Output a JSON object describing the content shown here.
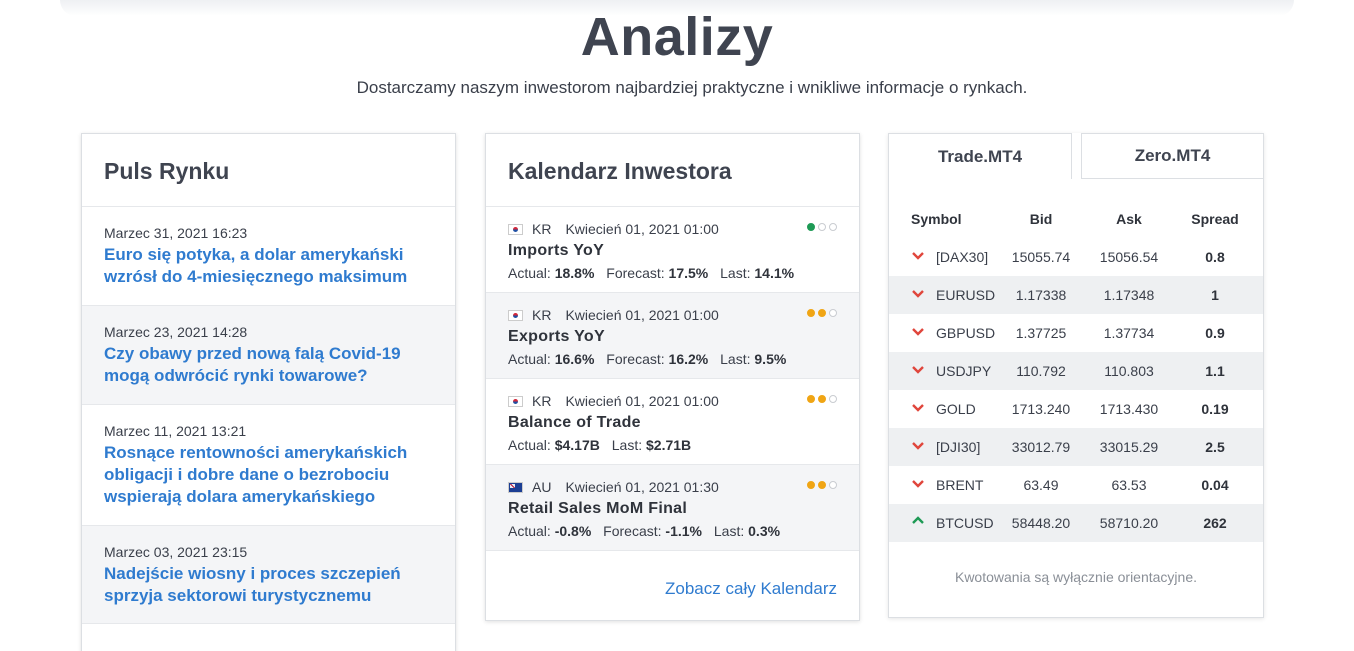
{
  "header": {
    "title": "Analizy",
    "subtitle": "Dostarczamy naszym inwestorom najbardziej praktyczne i wnikliwe informacje o rynkach."
  },
  "puls": {
    "title": "Puls Rynku",
    "items": [
      {
        "date": "Marzec 31, 2021 16:23",
        "headline": "Euro się potyka, a dolar amerykański wzrósł do 4-miesięcznego maksimum"
      },
      {
        "date": "Marzec 23, 2021 14:28",
        "headline": "Czy obawy przed nową falą Covid-19 mogą odwrócić rynki towarowe?"
      },
      {
        "date": "Marzec 11, 2021 13:21",
        "headline": "Rosnące rentowności amerykańskich obligacji i dobre dane o bezrobociu wspierają dolara amerykańskiego"
      },
      {
        "date": "Marzec 03, 2021 23:15",
        "headline": "Nadejście wiosny i proces szczepień sprzyja sektorowi turystycznemu"
      }
    ]
  },
  "kalendarz": {
    "title": "Kalendarz Inwestora",
    "footer_link": "Zobacz cały Kalendarz",
    "events": [
      {
        "country": "KR",
        "flag": "kr-flag-icon",
        "datetime": "Kwiecień 01, 2021 01:00",
        "name": "Imports YoY",
        "actual_label": "Actual:",
        "actual": "18.8%",
        "forecast_label": "Forecast:",
        "forecast": "17.5%",
        "last_label": "Last:",
        "last": "14.1%",
        "importance": 1,
        "importance_color": "#1e9a55"
      },
      {
        "country": "KR",
        "flag": "kr-flag-icon",
        "datetime": "Kwiecień 01, 2021 01:00",
        "name": "Exports YoY",
        "actual_label": "Actual:",
        "actual": "16.6%",
        "forecast_label": "Forecast:",
        "forecast": "16.2%",
        "last_label": "Last:",
        "last": "9.5%",
        "importance": 2,
        "importance_color": "#f0a514"
      },
      {
        "country": "KR",
        "flag": "kr-flag-icon",
        "datetime": "Kwiecień 01, 2021 01:00",
        "name": "Balance of Trade",
        "actual_label": "Actual:",
        "actual": "$4.17B",
        "last_label": "Last:",
        "last": "$2.71B",
        "importance": 2,
        "importance_color": "#f0a514"
      },
      {
        "country": "AU",
        "flag": "au-flag-icon",
        "datetime": "Kwiecień 01, 2021 01:30",
        "name": "Retail Sales MoM Final",
        "actual_label": "Actual:",
        "actual": "-0.8%",
        "forecast_label": "Forecast:",
        "forecast": "-1.1%",
        "last_label": "Last:",
        "last": "0.3%",
        "importance": 2,
        "importance_color": "#f0a514"
      }
    ]
  },
  "quotes": {
    "tabs": [
      "Trade.MT4",
      "Zero.MT4"
    ],
    "active_tab": "Trade.MT4",
    "columns": {
      "symbol": "Symbol",
      "bid": "Bid",
      "ask": "Ask",
      "spread": "Spread"
    },
    "down_color": "#e0463c",
    "up_color": "#1e9a55",
    "rows": [
      {
        "direction": "down",
        "symbol": "[DAX30]",
        "bid": "15055.74",
        "ask": "15056.54",
        "spread": "0.8"
      },
      {
        "direction": "down",
        "symbol": "EURUSD",
        "bid": "1.17338",
        "ask": "1.17348",
        "spread": "1"
      },
      {
        "direction": "down",
        "symbol": "GBPUSD",
        "bid": "1.37725",
        "ask": "1.37734",
        "spread": "0.9"
      },
      {
        "direction": "down",
        "symbol": "USDJPY",
        "bid": "110.792",
        "ask": "110.803",
        "spread": "1.1"
      },
      {
        "direction": "down",
        "symbol": "GOLD",
        "bid": "1713.240",
        "ask": "1713.430",
        "spread": "0.19"
      },
      {
        "direction": "down",
        "symbol": "[DJI30]",
        "bid": "33012.79",
        "ask": "33015.29",
        "spread": "2.5"
      },
      {
        "direction": "down",
        "symbol": "BRENT",
        "bid": "63.49",
        "ask": "63.53",
        "spread": "0.04"
      },
      {
        "direction": "up",
        "symbol": "BTCUSD",
        "bid": "58448.20",
        "ask": "58710.20",
        "spread": "262"
      }
    ],
    "note": "Kwotowania są wyłącznie orientacyjne."
  }
}
